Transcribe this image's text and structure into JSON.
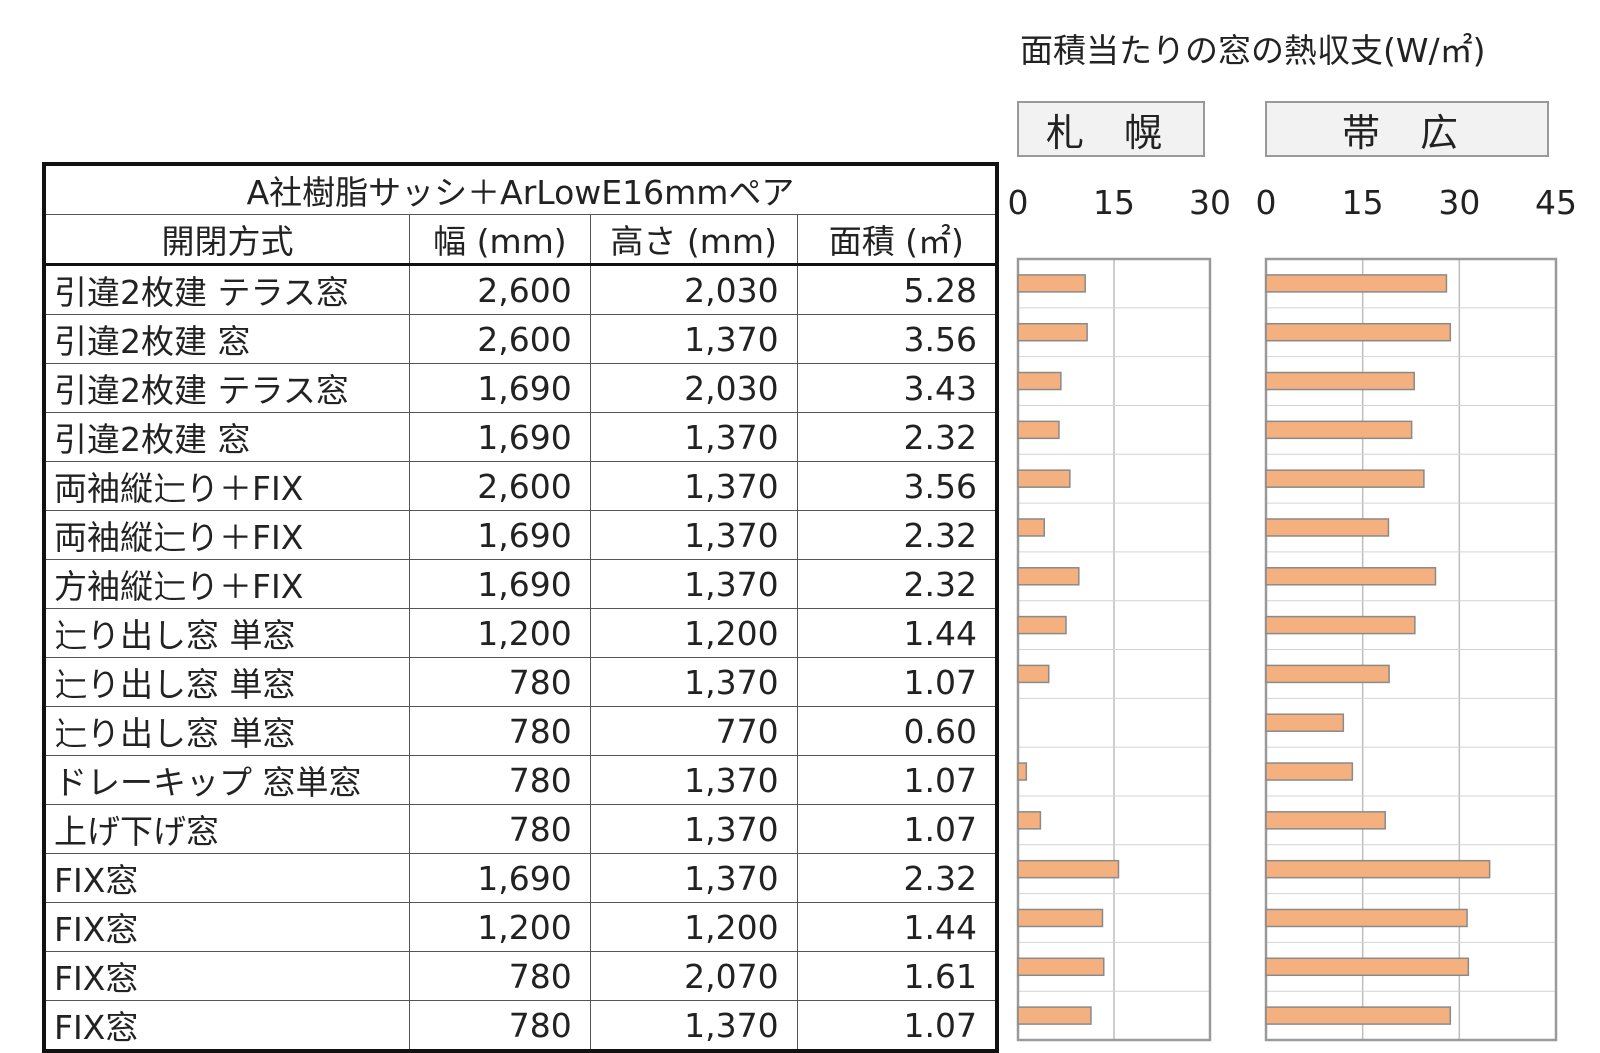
{
  "table": {
    "caption": "A社樹脂サッシ＋ArLowE16mmペア",
    "headers": [
      "開閉方式",
      "幅 (mm)",
      "高さ (mm)",
      "面積 (㎡)"
    ],
    "rows": [
      [
        "引違2枚建 テラス窓",
        "2,600",
        "2,030",
        "5.28"
      ],
      [
        "引違2枚建 窓",
        "2,600",
        "1,370",
        "3.56"
      ],
      [
        "引違2枚建 テラス窓",
        "1,690",
        "2,030",
        "3.43"
      ],
      [
        "引違2枚建 窓",
        "1,690",
        "1,370",
        "2.32"
      ],
      [
        "両袖縦辷り＋FIX",
        "2,600",
        "1,370",
        "3.56"
      ],
      [
        "両袖縦辷り＋FIX",
        "1,690",
        "1,370",
        "2.32"
      ],
      [
        "方袖縦辷り＋FIX",
        "1,690",
        "1,370",
        "2.32"
      ],
      [
        "辷り出し窓 単窓",
        "1,200",
        "1,200",
        "1.44"
      ],
      [
        "辷り出し窓 単窓",
        "780",
        "1,370",
        "1.07"
      ],
      [
        "辷り出し窓 単窓",
        "780",
        "770",
        "0.60"
      ],
      [
        "ドレーキップ 窓単窓",
        "780",
        "1,370",
        "1.07"
      ],
      [
        "上げ下げ窓",
        "780",
        "1,370",
        "1.07"
      ],
      [
        "FIX窓",
        "1,690",
        "1,370",
        "2.32"
      ],
      [
        "FIX窓",
        "1,200",
        "1,200",
        "1.44"
      ],
      [
        "FIX窓",
        "780",
        "2,070",
        "1.61"
      ],
      [
        "FIX窓",
        "780",
        "1,370",
        "1.07"
      ]
    ]
  },
  "chart_data": {
    "type": "bar",
    "orientation": "horizontal",
    "title": "面積当たりの窓の熱収支(W/㎡)",
    "bar_color": "#f4b07e",
    "bar_edge_color": "#8a8a8a",
    "grid": true,
    "panels": [
      {
        "name": "札 幌",
        "xlim": [
          0,
          30
        ],
        "ticks": [
          "0",
          "15",
          "30"
        ],
        "values": [
          10.5,
          10.8,
          6.7,
          6.4,
          8.1,
          4.1,
          9.5,
          7.5,
          4.8,
          0,
          1.3,
          3.5,
          15.7,
          13.2,
          13.4,
          11.4
        ]
      },
      {
        "name": "帯 広",
        "xlim": [
          0,
          45
        ],
        "ticks": [
          "0",
          "15",
          "30",
          "45"
        ],
        "values": [
          28.0,
          28.6,
          23.0,
          22.6,
          24.5,
          19.0,
          26.3,
          23.1,
          19.1,
          12.0,
          13.4,
          18.5,
          34.7,
          31.2,
          31.4,
          28.6
        ]
      }
    ]
  }
}
